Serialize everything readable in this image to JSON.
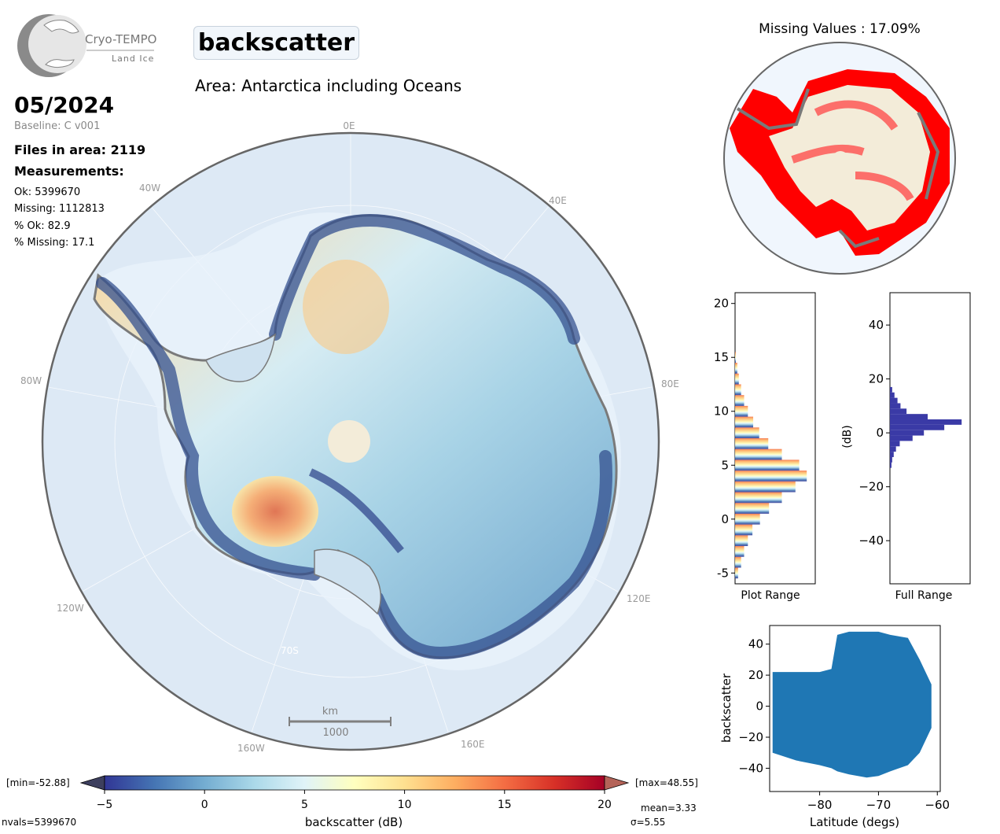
{
  "logo": {
    "brand": "Cryo-TEMPO",
    "product": "Land Ice"
  },
  "header": {
    "title": "backscatter",
    "area": "Area: Antarctica including Oceans",
    "date": "05/2024",
    "baseline": "Baseline: C v001"
  },
  "stats": {
    "files": "Files in area: 2119",
    "measurements_label": "Measurements:",
    "ok": "Ok: 5399670",
    "missing": "Missing: 1112813",
    "pct_ok": "% Ok: 82.9",
    "pct_missing": "% Missing: 17.1"
  },
  "map": {
    "lon_labels": [
      "0E",
      "40E",
      "80E",
      "120E",
      "160E",
      "160W",
      "120W",
      "80W",
      "40W"
    ],
    "lat_label": "70S",
    "scale_unit": "km",
    "scale_value": "1000"
  },
  "missing_panel": {
    "title": "Missing Values : 17.09%"
  },
  "hist_plot": {
    "xlabel": "Plot Range",
    "yticks": [
      "20",
      "15",
      "10",
      "5",
      "0",
      "-5"
    ]
  },
  "hist_full": {
    "xlabel": "Full Range",
    "ylabel": "(dB)",
    "yticks": [
      "40",
      "20",
      "0",
      "−20",
      "−40"
    ]
  },
  "colorbar": {
    "label": "backscatter (dB)",
    "ticks": [
      "−5",
      "0",
      "5",
      "10",
      "15",
      "20"
    ],
    "min_label": "[min=-52.88]",
    "max_label": "[max=48.55]",
    "mean": "mean=3.33",
    "sigma": "σ=5.55",
    "nvals": "nvals=5399670",
    "colors": [
      "#313695",
      "#4575b4",
      "#74add1",
      "#abd9e9",
      "#e0f3f8",
      "#ffffbf",
      "#fee090",
      "#fdae61",
      "#f46d43",
      "#d73027",
      "#a50026"
    ]
  },
  "chart_data": [
    {
      "type": "bar",
      "title": "",
      "xlabel": "Plot Range",
      "ylabel": "",
      "orientation": "horizontal",
      "ylim": [
        -6,
        21
      ],
      "bin_centers": [
        -5,
        -4,
        -3,
        -2,
        -1,
        0,
        1,
        2,
        3,
        4,
        5,
        6,
        7,
        8,
        9,
        10,
        11,
        12,
        13,
        14,
        15
      ],
      "values": [
        0.04,
        0.08,
        0.12,
        0.17,
        0.23,
        0.33,
        0.45,
        0.62,
        0.8,
        0.95,
        0.85,
        0.62,
        0.44,
        0.32,
        0.24,
        0.17,
        0.12,
        0.08,
        0.05,
        0.03,
        0.01
      ]
    },
    {
      "type": "bar",
      "title": "",
      "xlabel": "Full Range",
      "ylabel": "(dB)",
      "orientation": "horizontal",
      "ylim": [
        -56,
        52
      ],
      "bin_centers": [
        -12,
        -10,
        -8,
        -6,
        -4,
        -2,
        0,
        2,
        4,
        6,
        8,
        10,
        12,
        14,
        16
      ],
      "values": [
        0.02,
        0.03,
        0.05,
        0.08,
        0.13,
        0.3,
        0.45,
        0.72,
        0.95,
        0.5,
        0.22,
        0.14,
        0.1,
        0.06,
        0.03
      ]
    },
    {
      "type": "scatter",
      "title": "",
      "xlabel": "Latitude (degs)",
      "ylabel": "backscatter",
      "xlim": [
        -88.5,
        -59.5
      ],
      "ylim": [
        -55,
        52
      ],
      "xticks": [
        "−80",
        "−70",
        "−60"
      ],
      "yticks": [
        "40",
        "20",
        "0",
        "−20",
        "−40"
      ],
      "color": "#1f77b4",
      "envelope": {
        "x": [
          -88,
          -84,
          -80,
          -78,
          -77,
          -75,
          -72,
          -70,
          -68,
          -65,
          -63,
          -61
        ],
        "y_max": [
          22,
          22,
          22,
          24,
          46,
          48,
          48,
          48,
          46,
          44,
          30,
          14
        ],
        "y_min": [
          -30,
          -35,
          -38,
          -40,
          -42,
          -44,
          -46,
          -45,
          -42,
          -38,
          -30,
          -14
        ]
      }
    }
  ]
}
